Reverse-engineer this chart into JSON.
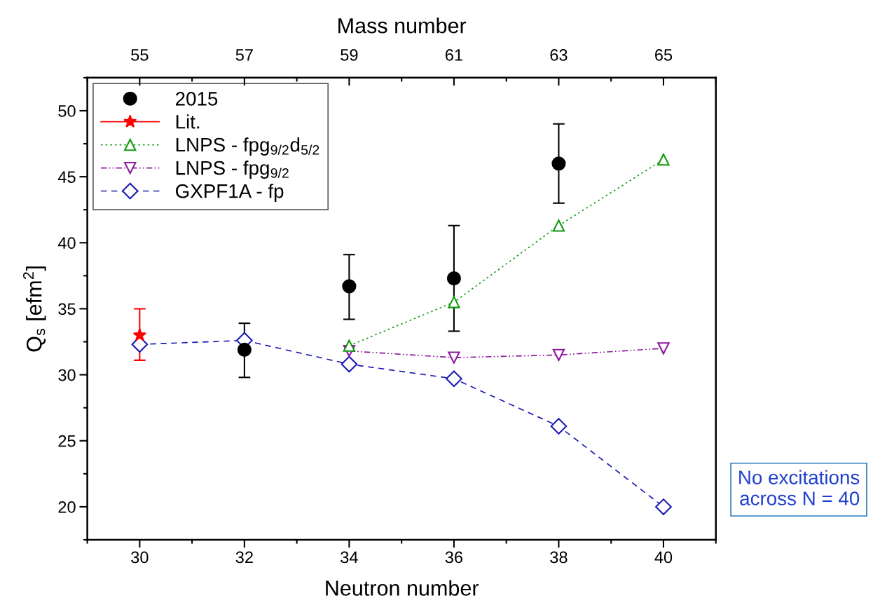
{
  "chart_data": {
    "type": "scatter",
    "xlabel": "Neutron number",
    "ylabel": "Q$_{s}$ [efm$^{2}$]",
    "x2label": "Mass number",
    "xlim": [
      29,
      41
    ],
    "xticks": [
      30,
      32,
      34,
      36,
      38,
      40
    ],
    "x2lim": [
      54,
      66
    ],
    "x2ticks": [
      55,
      57,
      59,
      61,
      63,
      65
    ],
    "ylim": [
      17.5,
      52.5
    ],
    "yticks": [
      20,
      25,
      30,
      35,
      40,
      45,
      50
    ],
    "grid": false,
    "legend": "top left",
    "annotations": [
      "No excitations\nacross N = 40"
    ],
    "series": [
      {
        "name": "2015",
        "color": "#000000",
        "marker": "circle",
        "x": [
          32,
          34,
          36,
          38
        ],
        "values": [
          31.9,
          36.7,
          37.3,
          46.0
        ],
        "errors": [
          [
            29.8,
            33.9
          ],
          [
            34.2,
            39.1
          ],
          [
            33.3,
            41.3
          ],
          [
            43.0,
            49.0
          ]
        ]
      },
      {
        "name": "Lit.",
        "type": "line",
        "color": "#ff0000",
        "marker": "star",
        "line_style": "solid",
        "x": [
          30
        ],
        "values": [
          33.0
        ],
        "errors": [
          [
            31.1,
            35.0
          ]
        ]
      },
      {
        "name": "LNPS - fpg$_{9/2}$d$_{5/2}$",
        "type": "line",
        "color": "#119911",
        "marker": "triangle",
        "line_style": "dotted",
        "x": [
          34,
          36,
          38,
          40
        ],
        "values": [
          32.2,
          35.5,
          41.3,
          46.3
        ]
      },
      {
        "name": "LNPS - fpg$_{9/2}$",
        "type": "line",
        "color": "#8b1a9b",
        "marker": "triangle_down",
        "line_style": "dashdot",
        "x": [
          34,
          36,
          38,
          40
        ],
        "values": [
          31.8,
          31.3,
          31.5,
          32.0
        ]
      },
      {
        "name": "GXPF1A - fp",
        "type": "line",
        "color": "#1a1ab4",
        "marker": "diamond",
        "line_style": "dashed",
        "x": [
          30,
          32,
          34,
          36,
          38,
          40
        ],
        "values": [
          32.3,
          32.6,
          30.8,
          29.7,
          26.1,
          20.0
        ]
      }
    ]
  }
}
